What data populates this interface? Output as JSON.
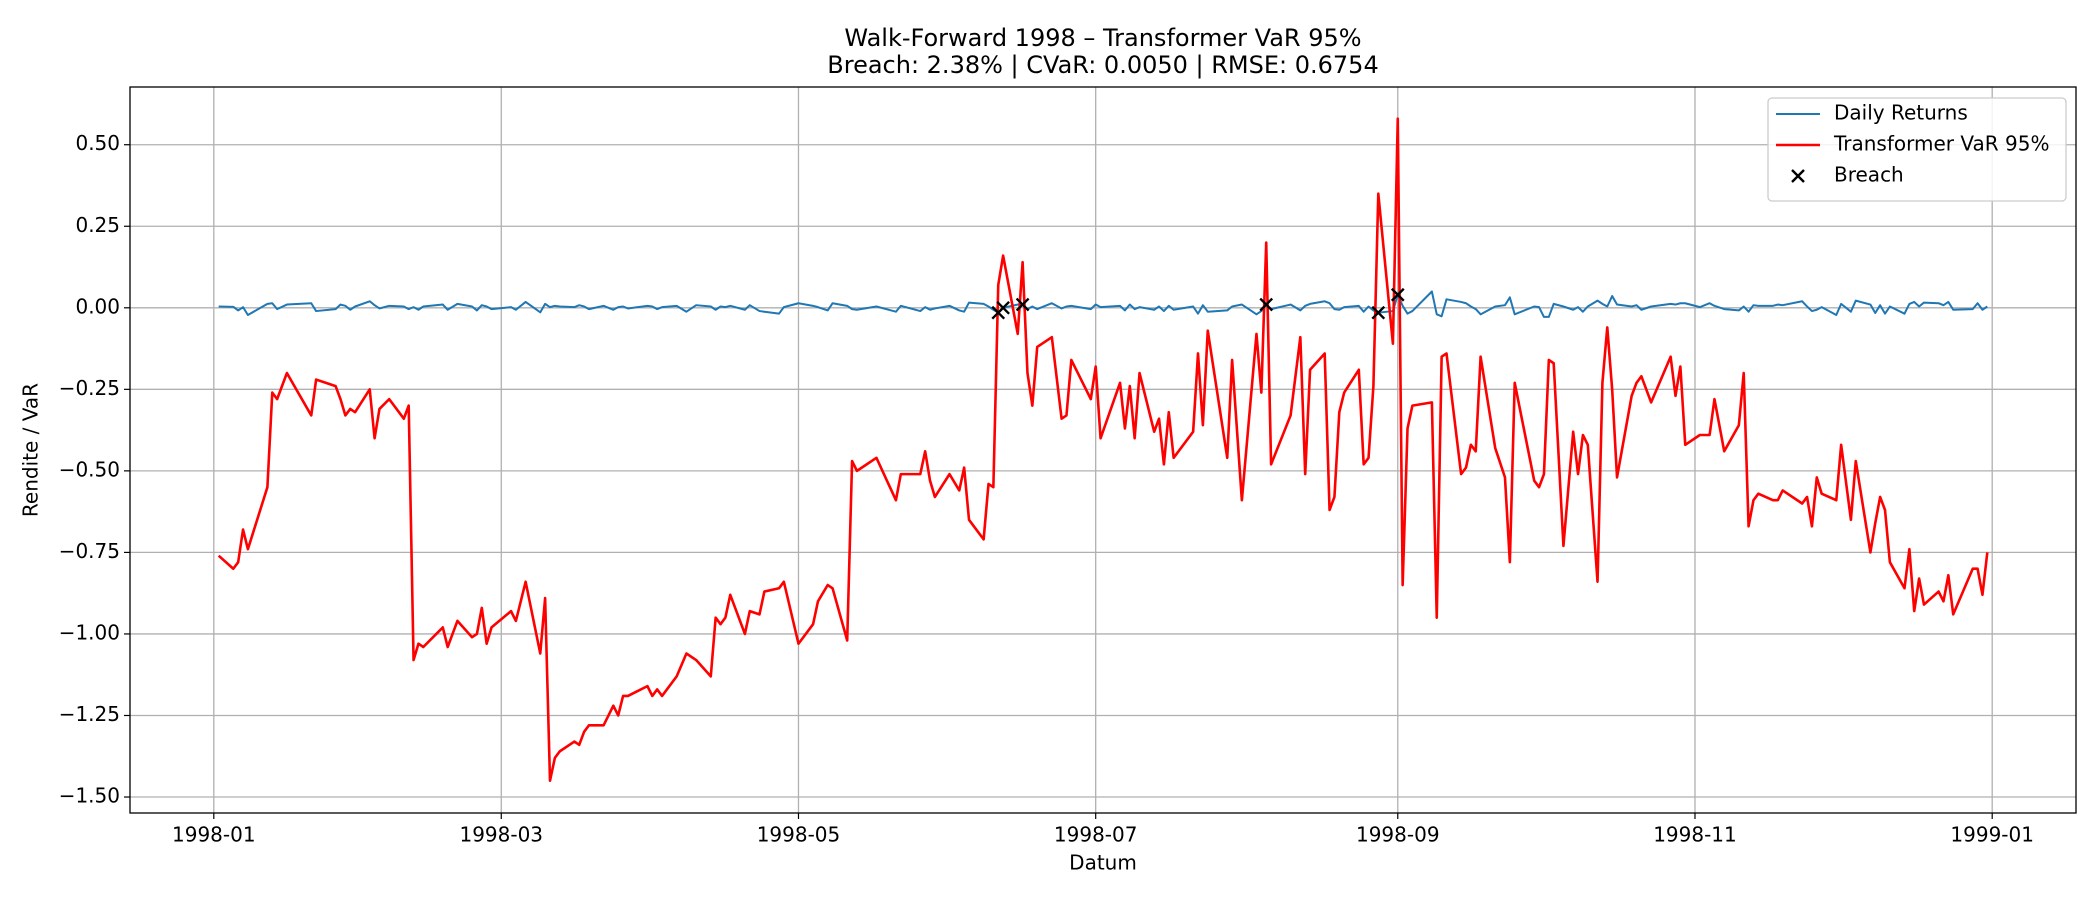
{
  "chart_data": {
    "type": "line",
    "title": "Walk-Forward 1998 – Transformer VaR 95%",
    "subtitle": "Breach: 2.38% | CVaR: 0.0050 | RMSE: 0.6754",
    "x_label": "Datum",
    "y_label": "Rendite / VaR",
    "x": [
      1,
      4,
      5,
      6,
      7,
      11,
      12,
      13,
      15,
      20,
      21,
      25,
      26,
      27,
      28,
      29,
      32,
      33,
      34,
      36,
      39,
      40,
      41,
      42,
      43,
      47,
      48,
      50,
      53,
      54,
      55,
      56,
      57,
      61,
      62,
      64,
      67,
      68,
      69,
      70,
      71,
      74,
      75,
      76,
      77,
      80,
      82,
      83,
      84,
      85,
      89,
      90,
      91,
      92,
      95,
      97,
      99,
      102,
      103,
      104,
      105,
      106,
      109,
      110,
      112,
      113,
      116,
      117,
      120,
      123,
      124,
      126,
      127,
      130,
      131,
      132,
      136,
      140,
      141,
      145,
      146,
      147,
      148,
      151,
      153,
      154,
      155,
      158,
      159,
      160,
      161,
      162,
      165,
      166,
      167,
      168,
      169,
      172,
      174,
      175,
      176,
      180,
      181,
      182,
      186,
      187,
      188,
      189,
      190,
      193,
      194,
      195,
      196,
      197,
      201,
      202,
      203,
      204,
      208,
      209,
      211,
      214,
      215,
      216,
      217,
      221,
      223,
      224,
      225,
      228,
      229,
      230,
      231,
      232,
      235,
      236,
      237,
      238,
      239,
      242,
      243,
      244,
      245,
      246,
      250,
      251,
      252,
      253,
      256,
      257,
      258,
      259,
      260,
      263,
      265,
      266,
      267,
      271,
      272,
      273,
      274,
      275,
      277,
      279,
      280,
      281,
      282,
      284,
      285,
      286,
      287,
      288,
      291,
      292,
      293,
      295,
      299,
      300,
      301,
      302,
      305,
      307,
      308,
      310,
      313,
      314,
      315,
      316,
      317,
      320,
      321,
      322,
      326,
      327,
      328,
      329,
      330,
      333,
      334,
      336,
      337,
      340,
      341,
      342,
      343,
      344,
      347,
      348,
      349,
      350,
      351,
      354,
      355,
      356,
      357,
      361,
      362,
      363,
      364
    ],
    "series": [
      {
        "name": "Daily Returns",
        "color": "#1f77b4",
        "type": "line",
        "values": [
          0.004,
          0.003,
          -0.008,
          0.002,
          -0.022,
          0.012,
          0.014,
          -0.004,
          0.01,
          0.014,
          -0.01,
          -0.004,
          0.01,
          0.006,
          -0.006,
          0.004,
          0.02,
          0.008,
          -0.002,
          0.006,
          0.004,
          -0.004,
          0.002,
          -0.006,
          0.004,
          0.01,
          -0.006,
          0.012,
          0.004,
          -0.008,
          0.008,
          0.004,
          -0.004,
          0.002,
          -0.006,
          0.018,
          -0.014,
          0.012,
          0.002,
          0.006,
          0.004,
          0.002,
          0.008,
          0.004,
          -0.004,
          0.006,
          -0.006,
          0.002,
          0.004,
          -0.002,
          0.006,
          0.004,
          -0.004,
          0.002,
          0.006,
          -0.012,
          0.008,
          0.004,
          -0.006,
          0.004,
          0.002,
          0.006,
          -0.006,
          0.008,
          -0.01,
          -0.012,
          -0.018,
          0.002,
          0.014,
          0.006,
          0.002,
          -0.008,
          0.014,
          0.006,
          -0.004,
          -0.006,
          0.004,
          -0.012,
          0.006,
          -0.01,
          0.002,
          -0.006,
          -0.002,
          0.006,
          -0.008,
          -0.012,
          0.016,
          0.012,
          0.004,
          -0.006,
          -0.015,
          0.0,
          0.01,
          0.01,
          -0.004,
          0.004,
          -0.004,
          0.014,
          -0.002,
          0.004,
          0.006,
          -0.004,
          0.01,
          0.002,
          0.006,
          -0.008,
          0.01,
          -0.004,
          0.002,
          -0.006,
          0.004,
          -0.01,
          0.006,
          -0.006,
          0.004,
          -0.018,
          0.008,
          -0.012,
          -0.008,
          0.004,
          0.01,
          -0.02,
          -0.01,
          0.01,
          -0.004,
          0.01,
          -0.008,
          0.006,
          0.012,
          0.02,
          0.014,
          -0.004,
          -0.006,
          0.002,
          0.006,
          -0.012,
          0.004,
          -0.008,
          -0.015,
          -0.01,
          0.04,
          0.006,
          -0.018,
          -0.01,
          0.05,
          -0.02,
          -0.026,
          0.026,
          0.018,
          0.014,
          0.004,
          -0.004,
          -0.02,
          0.004,
          0.008,
          0.032,
          -0.02,
          0.004,
          0.002,
          -0.028,
          -0.028,
          0.012,
          0.004,
          -0.006,
          0.002,
          -0.012,
          0.004,
          0.022,
          0.012,
          0.004,
          0.036,
          0.01,
          0.004,
          0.008,
          -0.006,
          0.004,
          0.012,
          0.01,
          0.014,
          0.014,
          0.002,
          0.014,
          0.006,
          -0.004,
          -0.008,
          0.004,
          -0.012,
          0.008,
          0.006,
          0.006,
          0.01,
          0.008,
          0.02,
          0.004,
          -0.01,
          -0.006,
          0.002,
          -0.022,
          0.012,
          -0.012,
          0.022,
          0.01,
          -0.016,
          0.008,
          -0.018,
          0.004,
          -0.018,
          0.012,
          0.018,
          0.004,
          0.016,
          0.014,
          0.008,
          0.018,
          -0.006,
          -0.004,
          0.014,
          -0.006,
          0.004
        ]
      },
      {
        "name": "Transformer VaR 95%",
        "color": "#ff0000",
        "type": "line",
        "values": [
          -0.76,
          -0.8,
          -0.78,
          -0.68,
          -0.74,
          -0.55,
          -0.26,
          -0.28,
          -0.2,
          -0.33,
          -0.22,
          -0.24,
          -0.28,
          -0.33,
          -0.31,
          -0.32,
          -0.25,
          -0.4,
          -0.31,
          -0.28,
          -0.34,
          -0.3,
          -1.08,
          -1.03,
          -1.04,
          -0.98,
          -1.04,
          -0.96,
          -1.01,
          -1.0,
          -0.92,
          -1.03,
          -0.98,
          -0.93,
          -0.96,
          -0.84,
          -1.06,
          -0.89,
          -1.45,
          -1.38,
          -1.36,
          -1.33,
          -1.34,
          -1.3,
          -1.28,
          -1.28,
          -1.22,
          -1.25,
          -1.19,
          -1.19,
          -1.16,
          -1.19,
          -1.17,
          -1.19,
          -1.13,
          -1.06,
          -1.08,
          -1.13,
          -0.95,
          -0.97,
          -0.95,
          -0.88,
          -1.0,
          -0.93,
          -0.94,
          -0.87,
          -0.86,
          -0.84,
          -1.03,
          -0.97,
          -0.9,
          -0.85,
          -0.86,
          -1.02,
          -0.47,
          -0.5,
          -0.46,
          -0.59,
          -0.51,
          -0.51,
          -0.44,
          -0.53,
          -0.58,
          -0.51,
          -0.56,
          -0.49,
          -0.65,
          -0.71,
          -0.54,
          -0.55,
          0.07,
          0.16,
          -0.08,
          0.14,
          -0.2,
          -0.3,
          -0.12,
          -0.09,
          -0.34,
          -0.33,
          -0.16,
          -0.28,
          -0.18,
          -0.4,
          -0.23,
          -0.37,
          -0.24,
          -0.4,
          -0.2,
          -0.38,
          -0.34,
          -0.48,
          -0.32,
          -0.46,
          -0.38,
          -0.14,
          -0.36,
          -0.07,
          -0.46,
          -0.16,
          -0.59,
          -0.08,
          -0.26,
          0.2,
          -0.48,
          -0.33,
          -0.09,
          -0.51,
          -0.19,
          -0.14,
          -0.62,
          -0.58,
          -0.32,
          -0.26,
          -0.19,
          -0.48,
          -0.46,
          -0.24,
          0.35,
          -0.11,
          0.58,
          -0.85,
          -0.37,
          -0.3,
          -0.29,
          -0.95,
          -0.15,
          -0.14,
          -0.51,
          -0.49,
          -0.42,
          -0.44,
          -0.15,
          -0.43,
          -0.52,
          -0.78,
          -0.23,
          -0.53,
          -0.55,
          -0.51,
          -0.16,
          -0.17,
          -0.73,
          -0.38,
          -0.51,
          -0.39,
          -0.42,
          -0.84,
          -0.23,
          -0.06,
          -0.25,
          -0.52,
          -0.27,
          -0.23,
          -0.21,
          -0.29,
          -0.15,
          -0.27,
          -0.18,
          -0.42,
          -0.39,
          -0.39,
          -0.28,
          -0.44,
          -0.36,
          -0.2,
          -0.67,
          -0.59,
          -0.57,
          -0.59,
          -0.59,
          -0.56,
          -0.6,
          -0.58,
          -0.67,
          -0.52,
          -0.57,
          -0.59,
          -0.42,
          -0.65,
          -0.47,
          -0.75,
          -0.66,
          -0.58,
          -0.62,
          -0.78,
          -0.86,
          -0.74,
          -0.93,
          -0.83,
          -0.91,
          -0.87,
          -0.9,
          -0.82,
          -0.94,
          -0.8,
          -0.8,
          -0.88,
          -0.75
        ]
      },
      {
        "name": "Breach",
        "color": "#000000",
        "type": "scatter",
        "x": [
          161,
          162,
          166,
          216,
          239,
          243
        ],
        "values": [
          -0.015,
          0.0,
          0.01,
          0.01,
          -0.015,
          0.04
        ]
      }
    ],
    "xlim": [
      -17.2,
      382.2
    ],
    "xticks": [
      {
        "value": 0,
        "label": "1998-01"
      },
      {
        "value": 59,
        "label": "1998-03"
      },
      {
        "value": 120,
        "label": "1998-05"
      },
      {
        "value": 181,
        "label": "1998-07"
      },
      {
        "value": 243,
        "label": "1998-09"
      },
      {
        "value": 304,
        "label": "1998-11"
      },
      {
        "value": 365,
        "label": "1999-01"
      }
    ],
    "ylim": [
      -1.549,
      0.677
    ],
    "yticks": [
      {
        "value": -1.5,
        "label": "−1.50"
      },
      {
        "value": -1.25,
        "label": "−1.25"
      },
      {
        "value": -1.0,
        "label": "−1.00"
      },
      {
        "value": -0.75,
        "label": "−0.75"
      },
      {
        "value": -0.5,
        "label": "−0.50"
      },
      {
        "value": -0.25,
        "label": "−0.25"
      },
      {
        "value": 0,
        "label": "0.00"
      },
      {
        "value": 0.25,
        "label": "0.25"
      },
      {
        "value": 0.5,
        "label": "0.50"
      }
    ],
    "grid": true,
    "legend": "upper right"
  }
}
